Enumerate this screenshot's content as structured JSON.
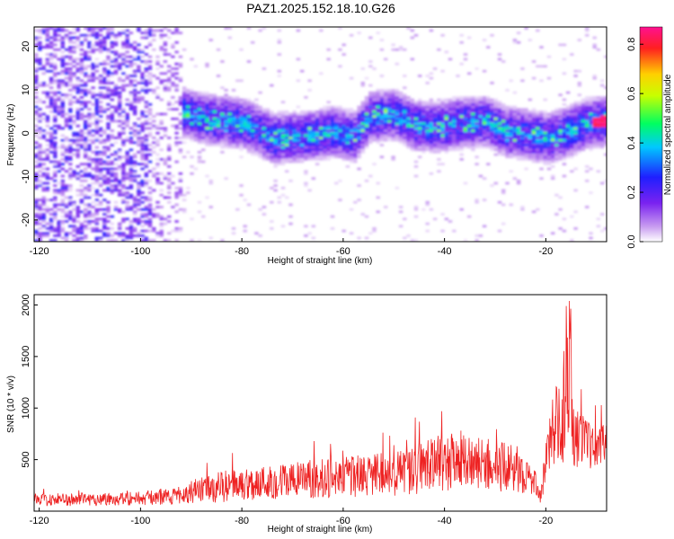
{
  "figure": {
    "title": "PAZ1.2025.152.18.10.G26"
  },
  "chart_data": [
    {
      "type": "heatmap",
      "xlabel": "Height of straight line (km)",
      "ylabel": "Frequency (Hz)",
      "xlim": [
        -121,
        -8
      ],
      "ylim": [
        -25,
        24.5
      ],
      "xticks": [
        -120,
        -100,
        -80,
        -60,
        -40,
        -20
      ],
      "yticks": [
        -20,
        -10,
        0,
        10,
        20
      ],
      "colorbar": {
        "label": "Normalized spectral amplitude",
        "range": [
          0,
          0.87
        ],
        "ticks": [
          0.0,
          0.2,
          0.4,
          0.6,
          0.8
        ]
      },
      "signal_band": {
        "description_points": [
          [
            -93,
            5
          ],
          [
            -88,
            3
          ],
          [
            -80,
            2
          ],
          [
            -74,
            -1.5
          ],
          [
            -68,
            -1
          ],
          [
            -62,
            0
          ],
          [
            -58,
            -1
          ],
          [
            -55,
            3.5
          ],
          [
            -50,
            4
          ],
          [
            -46,
            1.5
          ],
          [
            -42,
            1
          ],
          [
            -38,
            2
          ],
          [
            -32,
            2.5
          ],
          [
            -28,
            0
          ],
          [
            -24,
            -0.5
          ],
          [
            -20,
            -1.5
          ],
          [
            -16,
            0
          ],
          [
            -12,
            2
          ],
          [
            -9,
            2.5
          ]
        ],
        "peak_amplitude": 0.87
      }
    },
    {
      "type": "line",
      "xlabel": "Height of straight line (km)",
      "ylabel": "SNR (10 * v/v)",
      "xlim": [
        -121,
        -8
      ],
      "ylim": [
        0,
        2100
      ],
      "xticks": [
        -120,
        -100,
        -80,
        -60,
        -40,
        -20
      ],
      "yticks": [
        500,
        1000,
        1500,
        2000
      ],
      "series": [
        {
          "color": "#ee2222",
          "envelope_x": [
            -121,
            -110,
            -100,
            -92,
            -90,
            -85,
            -80,
            -70,
            -60,
            -50,
            -45,
            -40,
            -35,
            -30,
            -25,
            -22,
            -21,
            -19,
            -17,
            -16,
            -15,
            -14,
            -12,
            -10,
            -8
          ],
          "envelope_mean": [
            110,
            115,
            125,
            150,
            190,
            230,
            260,
            300,
            330,
            360,
            420,
            480,
            470,
            440,
            400,
            260,
            150,
            750,
            900,
            1100,
            900,
            700,
            650,
            620,
            680
          ],
          "envelope_amp": [
            60,
            65,
            70,
            80,
            110,
            150,
            160,
            180,
            200,
            220,
            260,
            280,
            260,
            250,
            220,
            120,
            80,
            300,
            450,
            650,
            500,
            300,
            250,
            180,
            180
          ]
        }
      ]
    }
  ]
}
